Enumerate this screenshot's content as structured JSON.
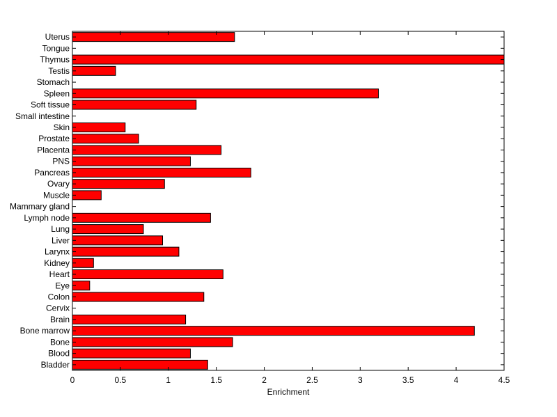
{
  "chart_data": {
    "type": "bar",
    "orientation": "horizontal",
    "title": "",
    "xlabel": "Enrichment",
    "ylabel": "",
    "xlim": [
      0,
      4.5
    ],
    "xticks": [
      0,
      0.5,
      1,
      1.5,
      2,
      2.5,
      3,
      3.5,
      4,
      4.5
    ],
    "xtick_labels": [
      "0",
      "0.5",
      "1",
      "1.5",
      "2",
      "2.5",
      "3",
      "3.5",
      "4",
      "4.5"
    ],
    "grid": false,
    "bar_color": "#ff0000",
    "categories": [
      "Uterus",
      "Tongue",
      "Thymus",
      "Testis",
      "Stomach",
      "Spleen",
      "Soft tissue",
      "Small intestine",
      "Skin",
      "Prostate",
      "Placenta",
      "PNS",
      "Pancreas",
      "Ovary",
      "Muscle",
      "Mammary gland",
      "Lymph node",
      "Lung",
      "Liver",
      "Larynx",
      "Kidney",
      "Heart",
      "Eye",
      "Colon",
      "Cervix",
      "Brain",
      "Bone marrow",
      "Bone",
      "Blood",
      "Bladder"
    ],
    "values": [
      1.69,
      0,
      4.5,
      0.45,
      0,
      3.19,
      1.29,
      0,
      0.55,
      0.69,
      1.55,
      1.23,
      1.86,
      0.96,
      0.3,
      0,
      1.44,
      0.74,
      0.94,
      1.11,
      0.22,
      1.57,
      0.18,
      1.37,
      0,
      1.18,
      4.19,
      1.67,
      1.23,
      1.41
    ]
  }
}
